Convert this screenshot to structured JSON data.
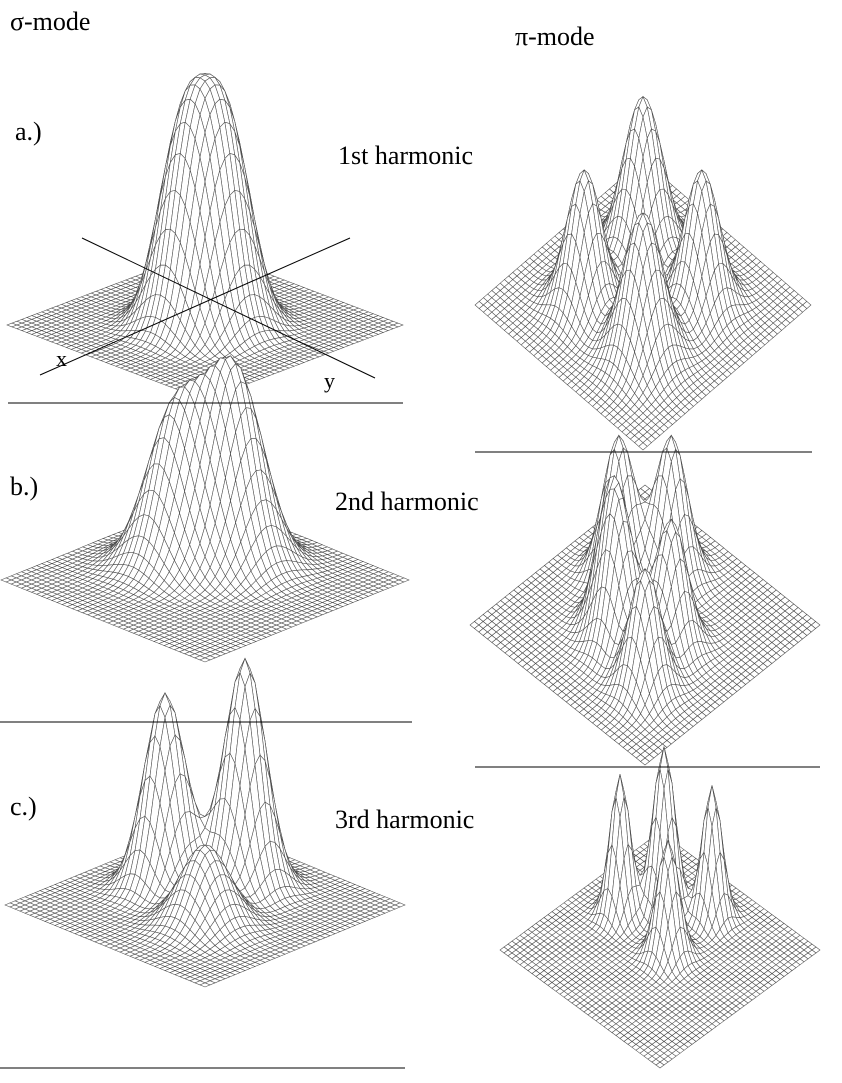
{
  "header": {
    "sigma_mode": "σ-mode",
    "pi_mode": "π-mode"
  },
  "rows": [
    {
      "label": "a.)",
      "harmonic": "1st harmonic"
    },
    {
      "label": "b.)",
      "harmonic": "2nd harmonic"
    },
    {
      "label": "c.)",
      "harmonic": "3rd harmonic"
    }
  ],
  "axes": {
    "x": "x",
    "y": "y"
  }
}
